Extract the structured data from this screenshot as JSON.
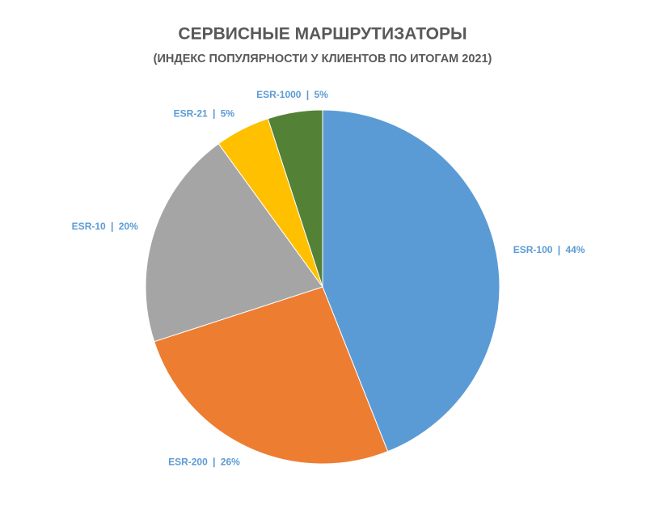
{
  "chart_data": {
    "type": "pie",
    "title": "СЕРВИСНЫЕ МАРШРУТИЗАТОРЫ",
    "subtitle": "(ИНДЕКС ПОПУЛЯРНОСТИ У КЛИЕНТОВ ПО ИТОГАМ 2021)",
    "categories": [
      "ESR-100",
      "ESR-200",
      "ESR-10",
      "ESR-21",
      "ESR-1000"
    ],
    "values": [
      44,
      26,
      20,
      5,
      5
    ],
    "value_labels": [
      "44%",
      "26%",
      "20%",
      "5%",
      "5%"
    ],
    "colors": [
      "#5b9bd5",
      "#ed7d31",
      "#a5a5a5",
      "#ffc000",
      "#538135"
    ]
  }
}
